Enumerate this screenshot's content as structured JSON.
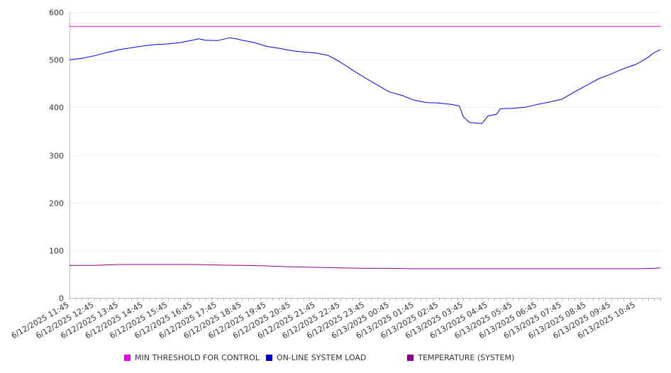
{
  "chart_data": {
    "type": "line",
    "title": "",
    "xlabel": "",
    "ylabel": "",
    "ylim": [
      0,
      600
    ],
    "y_ticks": [
      0,
      100,
      200,
      300,
      400,
      500,
      600
    ],
    "grid": true,
    "legend_position": "bottom",
    "x_start": "6/12/2025 11:45",
    "x_end": "6/13/2025 11:45",
    "x_tick_labels": [
      "6/12/2025 11:45",
      "6/12/2025 12:45",
      "6/12/2025 13:45",
      "6/12/2025 14:45",
      "6/12/2025 15:45",
      "6/12/2025 16:45",
      "6/12/2025 17:45",
      "6/12/2025 18:45",
      "6/12/2025 19:45",
      "6/12/2025 20:45",
      "6/12/2025 21:45",
      "6/12/2025 22:45",
      "6/12/2025 23:45",
      "6/13/2025 00:45",
      "6/13/2025 01:45",
      "6/13/2025 02:45",
      "6/13/2025 03:45",
      "6/13/2025 04:45",
      "6/13/2025 05:45",
      "6/13/2025 06:45",
      "6/13/2025 07:45",
      "6/13/2025 08:45",
      "6/13/2025 09:45",
      "6/13/2025 10:45"
    ],
    "series": [
      {
        "name": "MIN THRESHOLD FOR CONTROL",
        "color": "#ee00ee",
        "points": [
          [
            "6/12/2025 11:45",
            570
          ],
          [
            "6/13/2025 11:45",
            570
          ]
        ]
      },
      {
        "name": "ON-LINE SYSTEM LOAD",
        "color": "#0000dd",
        "points": [
          [
            "6/12/2025 11:45",
            500
          ],
          [
            "6/12/2025 12:15",
            503
          ],
          [
            "6/12/2025 12:45",
            508
          ],
          [
            "6/12/2025 13:15",
            515
          ],
          [
            "6/12/2025 13:45",
            521
          ],
          [
            "6/12/2025 14:15",
            525
          ],
          [
            "6/12/2025 14:45",
            529
          ],
          [
            "6/12/2025 15:15",
            532
          ],
          [
            "6/12/2025 15:45",
            533
          ],
          [
            "6/12/2025 16:15",
            536
          ],
          [
            "6/12/2025 16:45",
            541
          ],
          [
            "6/12/2025 17:00",
            544
          ],
          [
            "6/12/2025 17:15",
            541
          ],
          [
            "6/12/2025 17:45",
            540
          ],
          [
            "6/12/2025 18:15",
            546
          ],
          [
            "6/12/2025 18:30",
            544
          ],
          [
            "6/12/2025 18:45",
            541
          ],
          [
            "6/12/2025 19:15",
            536
          ],
          [
            "6/12/2025 19:45",
            528
          ],
          [
            "6/12/2025 20:15",
            524
          ],
          [
            "6/12/2025 20:45",
            519
          ],
          [
            "6/12/2025 21:15",
            516
          ],
          [
            "6/12/2025 21:45",
            514
          ],
          [
            "6/12/2025 22:15",
            509
          ],
          [
            "6/12/2025 22:45",
            495
          ],
          [
            "6/12/2025 23:15",
            478
          ],
          [
            "6/12/2025 23:45",
            462
          ],
          [
            "6/13/2025 00:15",
            447
          ],
          [
            "6/13/2025 00:45",
            432
          ],
          [
            "6/13/2025 01:15",
            425
          ],
          [
            "6/13/2025 01:45",
            415
          ],
          [
            "6/13/2025 02:15",
            410
          ],
          [
            "6/13/2025 02:45",
            409
          ],
          [
            "6/13/2025 03:15",
            406
          ],
          [
            "6/13/2025 03:35",
            403
          ],
          [
            "6/13/2025 03:45",
            380
          ],
          [
            "6/13/2025 04:00",
            368
          ],
          [
            "6/13/2025 04:30",
            366
          ],
          [
            "6/13/2025 04:45",
            382
          ],
          [
            "6/13/2025 05:05",
            385
          ],
          [
            "6/13/2025 05:15",
            397
          ],
          [
            "6/13/2025 05:45",
            398
          ],
          [
            "6/13/2025 06:15",
            400
          ],
          [
            "6/13/2025 06:45",
            406
          ],
          [
            "6/13/2025 07:15",
            411
          ],
          [
            "6/13/2025 07:45",
            417
          ],
          [
            "6/13/2025 08:15",
            432
          ],
          [
            "6/13/2025 08:45",
            446
          ],
          [
            "6/13/2025 09:15",
            460
          ],
          [
            "6/13/2025 09:45",
            470
          ],
          [
            "6/13/2025 10:15",
            481
          ],
          [
            "6/13/2025 10:45",
            490
          ],
          [
            "6/13/2025 11:00",
            497
          ],
          [
            "6/13/2025 11:15",
            505
          ],
          [
            "6/13/2025 11:30",
            515
          ],
          [
            "6/13/2025 11:45",
            521
          ]
        ]
      },
      {
        "name": "TEMPERATURE (SYSTEM)",
        "color": "#880088",
        "points": [
          [
            "6/12/2025 11:45",
            68
          ],
          [
            "6/12/2025 12:45",
            68
          ],
          [
            "6/12/2025 13:45",
            70
          ],
          [
            "6/12/2025 14:45",
            70
          ],
          [
            "6/12/2025 15:45",
            70
          ],
          [
            "6/12/2025 16:45",
            70
          ],
          [
            "6/12/2025 17:45",
            69
          ],
          [
            "6/12/2025 18:45",
            68
          ],
          [
            "6/12/2025 19:45",
            67
          ],
          [
            "6/12/2025 20:45",
            65
          ],
          [
            "6/12/2025 21:45",
            64
          ],
          [
            "6/12/2025 22:45",
            63
          ],
          [
            "6/12/2025 23:45",
            62
          ],
          [
            "6/13/2025 00:45",
            62
          ],
          [
            "6/13/2025 01:45",
            61
          ],
          [
            "6/13/2025 02:45",
            61
          ],
          [
            "6/13/2025 03:45",
            61
          ],
          [
            "6/13/2025 04:45",
            61
          ],
          [
            "6/13/2025 05:45",
            61
          ],
          [
            "6/13/2025 06:45",
            61
          ],
          [
            "6/13/2025 07:45",
            61
          ],
          [
            "6/13/2025 08:45",
            61
          ],
          [
            "6/13/2025 09:45",
            61
          ],
          [
            "6/13/2025 10:45",
            61
          ],
          [
            "6/13/2025 11:30",
            62
          ],
          [
            "6/13/2025 11:45",
            63
          ]
        ]
      }
    ]
  }
}
